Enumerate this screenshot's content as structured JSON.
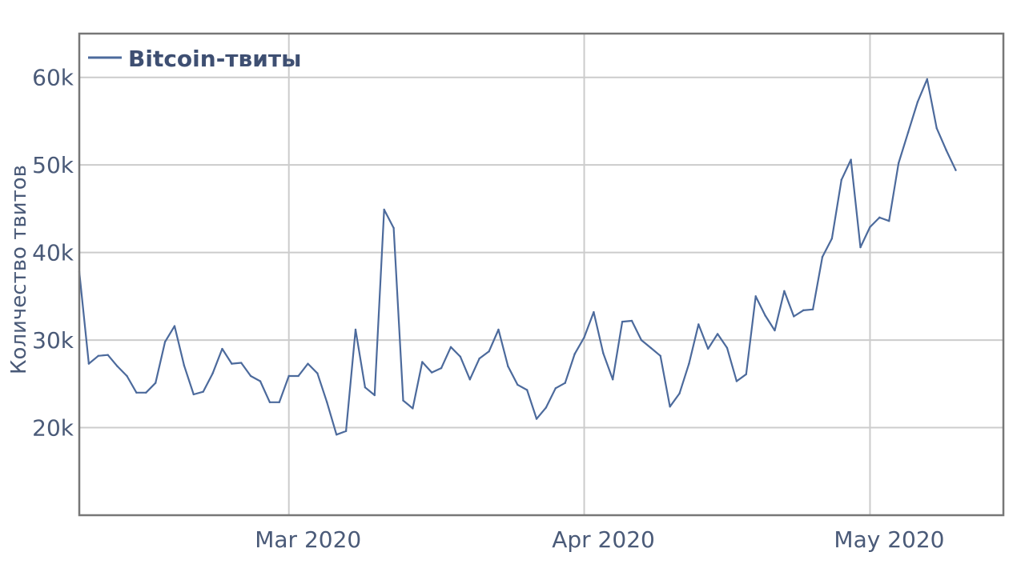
{
  "chart_data": {
    "type": "line",
    "ylabel": "Количество твитов",
    "xlabel": "",
    "ylim": [
      10000,
      65000
    ],
    "xlim": [
      "2020-02-08",
      "2020-05-15"
    ],
    "y_ticks": [
      {
        "value": 20000,
        "label": "20k"
      },
      {
        "value": 30000,
        "label": "30k"
      },
      {
        "value": 40000,
        "label": "40k"
      },
      {
        "value": 50000,
        "label": "50k"
      },
      {
        "value": 60000,
        "label": "60k"
      }
    ],
    "x_ticks": [
      {
        "date": "2020-03-01",
        "label": "Mar 2020"
      },
      {
        "date": "2020-04-01",
        "label": "Apr 2020"
      },
      {
        "date": "2020-05-01",
        "label": "May 2020"
      }
    ],
    "grid": true,
    "legend_position": "top-left",
    "series": [
      {
        "name": "Bitcoin-твиты",
        "color": "#4c6a9c",
        "x": [
          "2020-02-08",
          "2020-02-09",
          "2020-02-10",
          "2020-02-11",
          "2020-02-12",
          "2020-02-13",
          "2020-02-14",
          "2020-02-15",
          "2020-02-16",
          "2020-02-17",
          "2020-02-18",
          "2020-02-19",
          "2020-02-20",
          "2020-02-21",
          "2020-02-22",
          "2020-02-23",
          "2020-02-24",
          "2020-02-25",
          "2020-02-26",
          "2020-02-27",
          "2020-02-28",
          "2020-02-29",
          "2020-03-01",
          "2020-03-02",
          "2020-03-03",
          "2020-03-04",
          "2020-03-05",
          "2020-03-06",
          "2020-03-07",
          "2020-03-08",
          "2020-03-09",
          "2020-03-10",
          "2020-03-11",
          "2020-03-12",
          "2020-03-13",
          "2020-03-14",
          "2020-03-15",
          "2020-03-16",
          "2020-03-17",
          "2020-03-18",
          "2020-03-19",
          "2020-03-20",
          "2020-03-21",
          "2020-03-22",
          "2020-03-23",
          "2020-03-24",
          "2020-03-25",
          "2020-03-26",
          "2020-03-27",
          "2020-03-28",
          "2020-03-29",
          "2020-03-30",
          "2020-03-31",
          "2020-04-01",
          "2020-04-02",
          "2020-04-03",
          "2020-04-04",
          "2020-04-05",
          "2020-04-06",
          "2020-04-07",
          "2020-04-08",
          "2020-04-09",
          "2020-04-10",
          "2020-04-11",
          "2020-04-12",
          "2020-04-13",
          "2020-04-14",
          "2020-04-15",
          "2020-04-16",
          "2020-04-17",
          "2020-04-18",
          "2020-04-19",
          "2020-04-20",
          "2020-04-21",
          "2020-04-22",
          "2020-04-23",
          "2020-04-24",
          "2020-04-25",
          "2020-04-26",
          "2020-04-27",
          "2020-04-28",
          "2020-04-29",
          "2020-04-30",
          "2020-05-01",
          "2020-05-02",
          "2020-05-03",
          "2020-05-04",
          "2020-05-05",
          "2020-05-06",
          "2020-05-07",
          "2020-05-08",
          "2020-05-09",
          "2020-05-10"
        ],
        "values": [
          37800,
          27300,
          28200,
          28300,
          27000,
          25900,
          24000,
          24000,
          25100,
          29800,
          31600,
          27100,
          23800,
          24100,
          26200,
          29000,
          27300,
          27400,
          25900,
          25300,
          22900,
          22900,
          25900,
          25900,
          27300,
          26200,
          22900,
          19200,
          19600,
          31200,
          24600,
          23700,
          44900,
          42800,
          23100,
          22200,
          27500,
          26300,
          26800,
          29200,
          28100,
          25500,
          27900,
          28700,
          31200,
          27000,
          24900,
          24300,
          21000,
          22300,
          24500,
          25100,
          28400,
          30300,
          33200,
          28500,
          25500,
          32100,
          32200,
          30000,
          29100,
          28200,
          22400,
          23900,
          27300,
          31800,
          29000,
          30700,
          29100,
          25300,
          26100,
          35000,
          32800,
          31100,
          35600,
          32700,
          33400,
          33500,
          39500,
          41600,
          48300,
          50600,
          40600,
          42900,
          44000,
          43600,
          50200,
          53700,
          57200,
          59800,
          54200,
          51700,
          49400
        ]
      }
    ]
  }
}
